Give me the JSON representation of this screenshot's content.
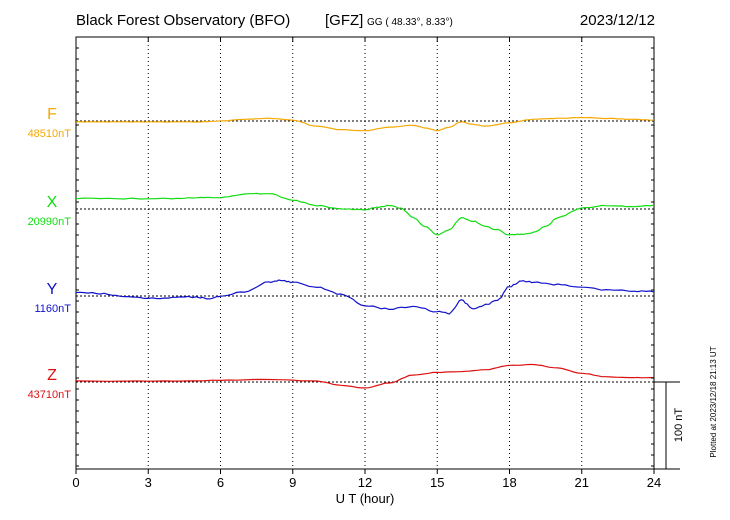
{
  "header": {
    "title": "Black Forest Observatory (BFO)",
    "agency": "[GFZ]",
    "coords": "GG ( 48.33°,   8.33°)",
    "date": "2023/12/12"
  },
  "plot_note": "Plotted at 2023/12/18 21:13 UT",
  "scale_bar_label": "100 nT",
  "colors": {
    "F": "#f5a800",
    "X": "#11dd11",
    "Y": "#1111cc",
    "Z": "#dd1111",
    "grid": "#000000"
  },
  "chart_data": {
    "type": "line",
    "xlabel": "U T (hour)",
    "xlim": [
      0,
      24
    ],
    "x_ticks": [
      0,
      3,
      6,
      9,
      12,
      15,
      18,
      21,
      24
    ],
    "x_tick_labels": [
      "0",
      "3",
      "6",
      "9",
      "12",
      "15",
      "18",
      "21",
      "24"
    ],
    "scale_bar_nT": 100,
    "series": [
      {
        "name": "F",
        "baseline_label": "48510nT",
        "baseline_nT": 48510,
        "offset_nT": [
          [
            0,
            -1
          ],
          [
            1,
            -1
          ],
          [
            2,
            -1
          ],
          [
            3,
            -1
          ],
          [
            4,
            -1
          ],
          [
            5,
            -1
          ],
          [
            6,
            0
          ],
          [
            7,
            2
          ],
          [
            8,
            3
          ],
          [
            9,
            1
          ],
          [
            10,
            -6
          ],
          [
            11,
            -10
          ],
          [
            12,
            -11
          ],
          [
            13,
            -7
          ],
          [
            14,
            -5
          ],
          [
            14.5,
            -8
          ],
          [
            15,
            -11
          ],
          [
            15.5,
            -7
          ],
          [
            16,
            -1
          ],
          [
            16.5,
            -4
          ],
          [
            17,
            -6
          ],
          [
            18,
            -2
          ],
          [
            19,
            2
          ],
          [
            20,
            3
          ],
          [
            21,
            4
          ],
          [
            22,
            3
          ],
          [
            23,
            2
          ],
          [
            24,
            1
          ]
        ]
      },
      {
        "name": "X",
        "baseline_label": "20990nT",
        "baseline_nT": 20990,
        "offset_nT": [
          [
            0,
            12
          ],
          [
            2,
            12
          ],
          [
            4,
            12
          ],
          [
            5,
            13
          ],
          [
            6,
            13
          ],
          [
            7,
            17
          ],
          [
            8,
            18
          ],
          [
            9,
            10
          ],
          [
            10,
            4
          ],
          [
            11,
            0
          ],
          [
            12,
            -1
          ],
          [
            12.5,
            2
          ],
          [
            13,
            4
          ],
          [
            13.5,
            1
          ],
          [
            14,
            -10
          ],
          [
            14.5,
            -20
          ],
          [
            15,
            -30
          ],
          [
            15.5,
            -24
          ],
          [
            16,
            -10
          ],
          [
            16.5,
            -14
          ],
          [
            17,
            -20
          ],
          [
            17.5,
            -24
          ],
          [
            18,
            -30
          ],
          [
            18.5,
            -29
          ],
          [
            19,
            -27
          ],
          [
            19.5,
            -20
          ],
          [
            20,
            -10
          ],
          [
            21,
            1
          ],
          [
            22,
            4
          ],
          [
            23,
            3
          ],
          [
            24,
            4
          ]
        ]
      },
      {
        "name": "Y",
        "baseline_label": "1160nT",
        "baseline_nT": 1160,
        "offset_nT": [
          [
            0,
            4
          ],
          [
            1,
            3
          ],
          [
            2,
            0
          ],
          [
            3,
            -3
          ],
          [
            4,
            -2
          ],
          [
            5,
            -1
          ],
          [
            5.5,
            -3
          ],
          [
            6,
            0
          ],
          [
            7,
            5
          ],
          [
            8,
            16
          ],
          [
            8.5,
            18
          ],
          [
            9,
            16
          ],
          [
            10,
            10
          ],
          [
            11,
            2
          ],
          [
            12,
            -11
          ],
          [
            13,
            -15
          ],
          [
            14,
            -12
          ],
          [
            15,
            -18
          ],
          [
            15.5,
            -20
          ],
          [
            16,
            -5
          ],
          [
            16.5,
            -15
          ],
          [
            17,
            -10
          ],
          [
            17.5,
            -5
          ],
          [
            18,
            11
          ],
          [
            18.5,
            17
          ],
          [
            19,
            16
          ],
          [
            20,
            13
          ],
          [
            21,
            10
          ],
          [
            22,
            7
          ],
          [
            23,
            6
          ],
          [
            24,
            5
          ]
        ]
      },
      {
        "name": "Z",
        "baseline_label": "43710nT",
        "baseline_nT": 43710,
        "offset_nT": [
          [
            0,
            1
          ],
          [
            2,
            1
          ],
          [
            4,
            1
          ],
          [
            6,
            2
          ],
          [
            8,
            3
          ],
          [
            10,
            1
          ],
          [
            11,
            -4
          ],
          [
            12,
            -7
          ],
          [
            13,
            -1
          ],
          [
            14,
            8
          ],
          [
            15,
            11
          ],
          [
            16,
            12
          ],
          [
            17,
            14
          ],
          [
            18,
            19
          ],
          [
            19,
            20
          ],
          [
            20,
            16
          ],
          [
            21,
            10
          ],
          [
            22,
            6
          ],
          [
            23,
            5
          ],
          [
            24,
            5
          ]
        ]
      }
    ]
  }
}
